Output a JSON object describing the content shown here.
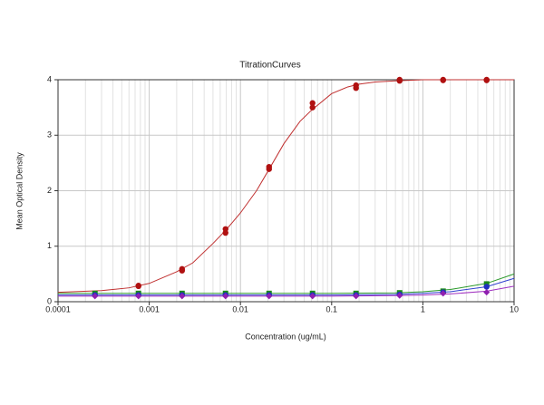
{
  "chart_data": {
    "type": "scatter",
    "title": "TitrationCurves",
    "xlabel": "Concentration (ug/mL)",
    "ylabel": "Mean Optical Density",
    "xscale": "log",
    "xlim": [
      0.0001,
      10
    ],
    "xticks": [
      0.0001,
      0.001,
      0.01,
      0.1,
      1,
      10
    ],
    "ylim": [
      0,
      4
    ],
    "yticks": [
      0,
      1,
      2,
      3,
      4
    ],
    "grid": true,
    "minor_grid": true,
    "series": [
      {
        "color": "#b01010",
        "marker": "circle",
        "x": [
          0.000762,
          0.000762,
          0.00229,
          0.00229,
          0.00686,
          0.00686,
          0.0206,
          0.0206,
          0.0617,
          0.0617,
          0.185,
          0.185,
          0.556,
          0.556,
          1.667,
          1.667,
          5,
          5
        ],
        "values": [
          0.29,
          0.28,
          0.59,
          0.56,
          1.31,
          1.24,
          2.43,
          2.39,
          3.58,
          3.5,
          3.9,
          3.85,
          4.0,
          3.98,
          4.0,
          3.99,
          4.0,
          3.99
        ]
      },
      {
        "color": "#1a8a1a",
        "marker": "square",
        "x": [
          0.000254,
          0.000762,
          0.00229,
          0.00686,
          0.0206,
          0.0617,
          0.185,
          0.556,
          1.667,
          5
        ],
        "values": [
          0.15,
          0.15,
          0.15,
          0.15,
          0.15,
          0.15,
          0.15,
          0.16,
          0.19,
          0.32
        ]
      },
      {
        "color": "#2030c0",
        "marker": "circle",
        "x": [
          0.000254,
          0.000762,
          0.00229,
          0.00686,
          0.0206,
          0.0617,
          0.185,
          0.556,
          1.667,
          5
        ],
        "values": [
          0.12,
          0.12,
          0.12,
          0.12,
          0.12,
          0.12,
          0.12,
          0.13,
          0.17,
          0.27
        ]
      },
      {
        "color": "#9020b0",
        "marker": "diamond",
        "x": [
          0.000254,
          0.000762,
          0.00229,
          0.00686,
          0.0206,
          0.0617,
          0.185,
          0.556,
          1.667,
          5
        ],
        "values": [
          0.1,
          0.1,
          0.1,
          0.1,
          0.1,
          0.1,
          0.1,
          0.11,
          0.15,
          0.17
        ]
      }
    ],
    "curves": [
      {
        "color": "#c03030",
        "x": [
          0.0001,
          0.0003,
          0.0006,
          0.001,
          0.002,
          0.003,
          0.005,
          0.007,
          0.01,
          0.015,
          0.02,
          0.03,
          0.045,
          0.06,
          0.1,
          0.15,
          0.2,
          0.3,
          0.5,
          1,
          10
        ],
        "values": [
          0.17,
          0.2,
          0.25,
          0.33,
          0.54,
          0.7,
          1.05,
          1.3,
          1.6,
          2.0,
          2.35,
          2.85,
          3.25,
          3.45,
          3.75,
          3.87,
          3.92,
          3.96,
          3.98,
          4.0,
          4.0
        ]
      },
      {
        "color": "#2a9a2a",
        "x": [
          0.0001,
          0.1,
          0.5,
          1,
          2,
          5,
          10
        ],
        "values": [
          0.15,
          0.15,
          0.16,
          0.18,
          0.22,
          0.33,
          0.5
        ]
      },
      {
        "color": "#3040d0",
        "x": [
          0.0001,
          0.1,
          0.5,
          1,
          2,
          5,
          10
        ],
        "values": [
          0.12,
          0.12,
          0.13,
          0.15,
          0.18,
          0.27,
          0.42
        ]
      },
      {
        "color": "#a030c0",
        "x": [
          0.0001,
          0.1,
          0.5,
          1,
          2,
          5,
          10
        ],
        "values": [
          0.1,
          0.1,
          0.11,
          0.12,
          0.14,
          0.19,
          0.28
        ]
      }
    ]
  }
}
